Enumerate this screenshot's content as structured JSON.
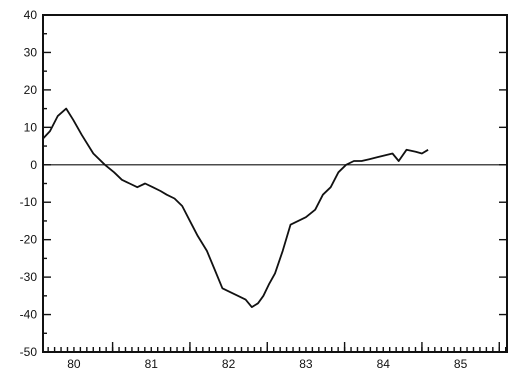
{
  "chart_data": {
    "type": "line",
    "title": "",
    "xlabel": "",
    "ylabel": "",
    "xlim": [
      79.6,
      85.6
    ],
    "ylim": [
      -50,
      40
    ],
    "grid": false,
    "x_ticks": [
      80,
      81,
      82,
      83,
      84,
      85
    ],
    "x_tick_labels": [
      "80",
      "81",
      "82",
      "83",
      "84",
      "85"
    ],
    "y_ticks": [
      40,
      30,
      20,
      10,
      0,
      -10,
      -20,
      -30,
      -40,
      -50
    ],
    "y_tick_labels": [
      "40",
      "30",
      "20",
      "10",
      "0",
      "-10",
      "-20",
      "-30",
      "-40",
      "-50"
    ],
    "reference_line_y": 0,
    "series": [
      {
        "color": "#111111",
        "x": [
          79.6,
          79.69,
          79.79,
          79.9,
          79.99,
          80.1,
          80.25,
          80.4,
          80.52,
          80.62,
          80.72,
          80.82,
          80.92,
          81.02,
          81.12,
          81.2,
          81.3,
          81.4,
          81.5,
          81.6,
          81.72,
          81.82,
          81.92,
          82.02,
          82.12,
          82.22,
          82.3,
          82.38,
          82.45,
          82.52,
          82.6,
          82.7,
          82.8,
          82.9,
          83.0,
          83.12,
          83.22,
          83.32,
          83.42,
          83.52,
          83.62,
          83.72,
          83.82,
          83.92,
          84.02,
          84.12,
          84.2,
          84.3,
          84.42,
          84.5,
          84.58
        ],
        "y": [
          7,
          9,
          13,
          15,
          12,
          8,
          3,
          0,
          -2,
          -4,
          -5,
          -6,
          -5,
          -6,
          -7,
          -8,
          -9,
          -11,
          -15,
          -19,
          -23,
          -28,
          -33,
          -34,
          -35,
          -36,
          -38,
          -37,
          -35,
          -32,
          -29,
          -23,
          -16,
          -15,
          -14,
          -12,
          -8,
          -6,
          -2,
          0,
          1,
          1,
          1.5,
          2,
          2.5,
          3,
          1,
          4,
          3.5,
          3,
          4
        ]
      }
    ]
  }
}
